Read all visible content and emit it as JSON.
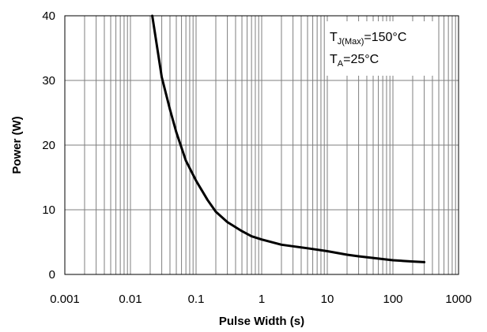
{
  "chart_data": {
    "type": "line",
    "title": "",
    "xlabel": "Pulse Width (s)",
    "ylabel": "Power (W)",
    "x_scale": "log",
    "xlim": [
      0.001,
      1000
    ],
    "ylim": [
      0,
      40
    ],
    "grid": true,
    "x_ticks": [
      "0.001",
      "0.01",
      "0.1",
      "1",
      "10",
      "100",
      "1000"
    ],
    "y_ticks": [
      "0",
      "10",
      "20",
      "30",
      "40"
    ],
    "annotation": {
      "line1": {
        "main": "T",
        "sub": "J(Max)",
        "rest": "=150°C"
      },
      "line2": {
        "main": "T",
        "sub": "A",
        "rest": "=25°C"
      }
    },
    "series": [
      {
        "color": "#000000",
        "x": [
          0.0215,
          0.03,
          0.04,
          0.05,
          0.07,
          0.1,
          0.15,
          0.2,
          0.3,
          0.5,
          0.7,
          1,
          2,
          3,
          5,
          10,
          20,
          30,
          50,
          100,
          200,
          300
        ],
        "y": [
          40,
          30.5,
          25.5,
          22,
          17.6,
          14.5,
          11.5,
          9.7,
          8.1,
          6.7,
          5.9,
          5.4,
          4.6,
          4.35,
          4.05,
          3.6,
          3.05,
          2.8,
          2.55,
          2.2,
          2.0,
          1.9
        ]
      }
    ]
  }
}
